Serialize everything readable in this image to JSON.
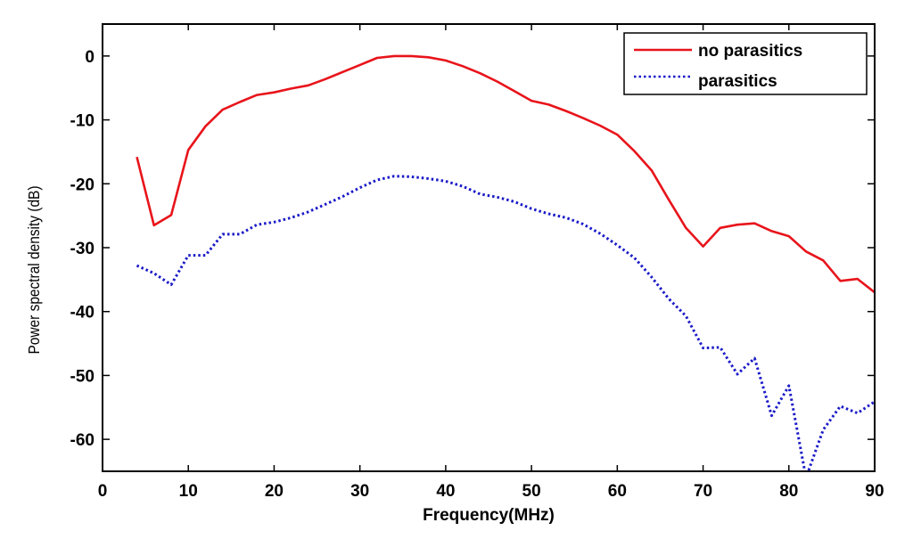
{
  "chart_data": {
    "type": "line",
    "title": "",
    "xlabel": "Frequency(MHz)",
    "ylabel": "Power spectral density (dB)",
    "xlim": [
      0,
      90
    ],
    "ylim": [
      -65,
      5
    ],
    "xticks": [
      0,
      10,
      20,
      30,
      40,
      50,
      60,
      70,
      80,
      90
    ],
    "xtick_labels": [
      "0",
      "10",
      "20",
      "30",
      "40",
      "50",
      "60",
      "70",
      "80",
      "90"
    ],
    "yticks": [
      0,
      -10,
      -20,
      -30,
      -40,
      -50,
      -60
    ],
    "ytick_labels": [
      "0",
      "-10",
      "-20",
      "-30",
      "-40",
      "-50",
      "-60"
    ],
    "grid": false,
    "legend_position": "top-right",
    "x": [
      4,
      6,
      8,
      10,
      12,
      14,
      16,
      18,
      20,
      22,
      24,
      26,
      28,
      30,
      32,
      34,
      36,
      38,
      40,
      42,
      44,
      46,
      48,
      50,
      52,
      54,
      56,
      58,
      60,
      62,
      64,
      66,
      68,
      70,
      72,
      74,
      76,
      78,
      80,
      82,
      84,
      86,
      88,
      90
    ],
    "series": [
      {
        "name": "no parasitics",
        "color": "#e8141b",
        "style": "solid",
        "values": [
          -15.8,
          -26.5,
          -24.9,
          -14.7,
          -11.0,
          -8.4,
          -7.2,
          -6.1,
          -5.7,
          -5.1,
          -4.6,
          -3.6,
          -2.5,
          -1.4,
          -0.3,
          0.0,
          0.0,
          -0.2,
          -0.7,
          -1.6,
          -2.7,
          -4.0,
          -5.5,
          -7.0,
          -7.6,
          -8.6,
          -9.7,
          -10.9,
          -12.3,
          -14.9,
          -17.9,
          -22.5,
          -26.9,
          -29.8,
          -26.9,
          -26.4,
          -26.2,
          -27.4,
          -28.2,
          -30.6,
          -32.0,
          -35.2,
          -34.9,
          -37.0
        ]
      },
      {
        "name": "parasitics",
        "color": "#1a1ac8",
        "style": "dotted",
        "values": [
          -32.8,
          -34.0,
          -35.8,
          -31.2,
          -31.2,
          -27.9,
          -27.9,
          -26.4,
          -26.0,
          -25.3,
          -24.4,
          -23.2,
          -22.0,
          -20.6,
          -19.4,
          -18.8,
          -18.9,
          -19.2,
          -19.6,
          -20.4,
          -21.6,
          -22.1,
          -22.8,
          -23.9,
          -24.7,
          -25.3,
          -26.3,
          -27.8,
          -29.6,
          -31.6,
          -34.6,
          -38.0,
          -40.7,
          -45.7,
          -45.6,
          -49.8,
          -47.3,
          -56.3,
          -51.6,
          -66.0,
          -58.5,
          -54.8,
          -55.9,
          -54.1
        ]
      }
    ]
  }
}
